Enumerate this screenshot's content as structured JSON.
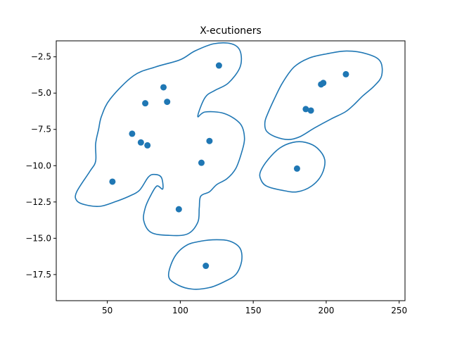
{
  "chart_data": {
    "type": "scatter",
    "title": "X-ecutioners",
    "xlabel": "",
    "ylabel": "",
    "xlim": [
      15,
      254
    ],
    "ylim": [
      -19.3,
      -1.4
    ],
    "grid": false,
    "x_ticks": [
      50,
      100,
      150,
      200,
      250
    ],
    "y_ticks": [
      -2.5,
      -5.0,
      -7.5,
      -10.0,
      -12.5,
      -15.0,
      -17.5
    ],
    "x_tick_labels": [
      "50",
      "100",
      "150",
      "200",
      "250"
    ],
    "y_tick_labels": [
      "−2.5",
      "−5.0",
      "−7.5",
      "−10.0",
      "−12.5",
      "−15.0",
      "−17.5"
    ],
    "marker_color": "#1f77b4",
    "contour_color": "#1f77b4",
    "points": [
      {
        "x": 126.5,
        "y": -3.1
      },
      {
        "x": 88.5,
        "y": -4.6
      },
      {
        "x": 76,
        "y": -5.7
      },
      {
        "x": 91,
        "y": -5.6
      },
      {
        "x": 67,
        "y": -7.8
      },
      {
        "x": 73,
        "y": -8.4
      },
      {
        "x": 77.5,
        "y": -8.6
      },
      {
        "x": 120,
        "y": -8.3
      },
      {
        "x": 114.5,
        "y": -9.8
      },
      {
        "x": 53.5,
        "y": -11.1
      },
      {
        "x": 99,
        "y": -13.0
      },
      {
        "x": 117.5,
        "y": -16.9
      },
      {
        "x": 180,
        "y": -10.2
      },
      {
        "x": 186,
        "y": -6.1
      },
      {
        "x": 189.5,
        "y": -6.2
      },
      {
        "x": 196.5,
        "y": -4.4
      },
      {
        "x": 198,
        "y": -4.3
      },
      {
        "x": 213.5,
        "y": -3.7
      }
    ],
    "contours": [
      [
        [
          29,
          -11.8
        ],
        [
          38,
          -10.4
        ],
        [
          42,
          -9.7
        ],
        [
          42,
          -8.5
        ],
        [
          44,
          -7.5
        ],
        [
          46,
          -6.6
        ],
        [
          52,
          -5.4
        ],
        [
          68,
          -3.8
        ],
        [
          83,
          -3.2
        ],
        [
          100,
          -2.7
        ],
        [
          110,
          -2.1
        ],
        [
          123,
          -1.6
        ],
        [
          135,
          -1.6
        ],
        [
          141,
          -2.1
        ],
        [
          141,
          -3.2
        ],
        [
          133,
          -4.3
        ],
        [
          124,
          -4.8
        ],
        [
          117,
          -5.3
        ],
        [
          112,
          -6.6
        ],
        [
          117,
          -6.3
        ],
        [
          130,
          -6.4
        ],
        [
          141,
          -7.1
        ],
        [
          144,
          -8.1
        ],
        [
          142,
          -9.1
        ],
        [
          138,
          -10.2
        ],
        [
          132,
          -10.9
        ],
        [
          125,
          -11.3
        ],
        [
          120,
          -11.8
        ],
        [
          114,
          -12.1
        ],
        [
          113,
          -12.9
        ],
        [
          112,
          -13.9
        ],
        [
          105,
          -14.7
        ],
        [
          92,
          -14.8
        ],
        [
          80,
          -14.6
        ],
        [
          75,
          -13.8
        ],
        [
          76,
          -12.9
        ],
        [
          80,
          -12.0
        ],
        [
          84,
          -11.4
        ],
        [
          88,
          -11.6
        ],
        [
          87,
          -10.8
        ],
        [
          82,
          -10.6
        ],
        [
          78,
          -10.8
        ],
        [
          72,
          -11.7
        ],
        [
          65,
          -12.1
        ],
        [
          55,
          -12.5
        ],
        [
          45,
          -12.8
        ],
        [
          35,
          -12.7
        ],
        [
          29,
          -12.4
        ],
        [
          29,
          -11.8
        ]
      ],
      [
        [
          158,
          -7.0
        ],
        [
          160,
          -6.4
        ],
        [
          164,
          -5.5
        ],
        [
          170,
          -4.3
        ],
        [
          178,
          -3.2
        ],
        [
          188,
          -2.6
        ],
        [
          200,
          -2.3
        ],
        [
          214,
          -2.1
        ],
        [
          228,
          -2.3
        ],
        [
          237,
          -2.8
        ],
        [
          238,
          -3.8
        ],
        [
          233,
          -4.5
        ],
        [
          225,
          -5.2
        ],
        [
          219,
          -5.8
        ],
        [
          213,
          -6.3
        ],
        [
          203,
          -6.8
        ],
        [
          192,
          -7.4
        ],
        [
          182,
          -8.0
        ],
        [
          174,
          -8.2
        ],
        [
          165,
          -8.0
        ],
        [
          159,
          -7.6
        ],
        [
          158,
          -7.0
        ]
      ],
      [
        [
          155,
          -10.4
        ],
        [
          160,
          -9.6
        ],
        [
          168,
          -8.8
        ],
        [
          177,
          -8.4
        ],
        [
          186,
          -8.4
        ],
        [
          194,
          -8.8
        ],
        [
          199,
          -9.6
        ],
        [
          197,
          -10.6
        ],
        [
          190,
          -11.4
        ],
        [
          180,
          -11.8
        ],
        [
          170,
          -11.7
        ],
        [
          159,
          -11.4
        ],
        [
          155,
          -10.9
        ],
        [
          155,
          -10.4
        ]
      ],
      [
        [
          92,
          -17.6
        ],
        [
          96,
          -16.3
        ],
        [
          104,
          -15.5
        ],
        [
          114,
          -15.2
        ],
        [
          125,
          -15.1
        ],
        [
          134,
          -15.2
        ],
        [
          141,
          -15.7
        ],
        [
          142,
          -16.6
        ],
        [
          138,
          -17.5
        ],
        [
          130,
          -18.0
        ],
        [
          120,
          -18.4
        ],
        [
          108,
          -18.5
        ],
        [
          98,
          -18.2
        ],
        [
          92,
          -17.6
        ]
      ]
    ]
  }
}
